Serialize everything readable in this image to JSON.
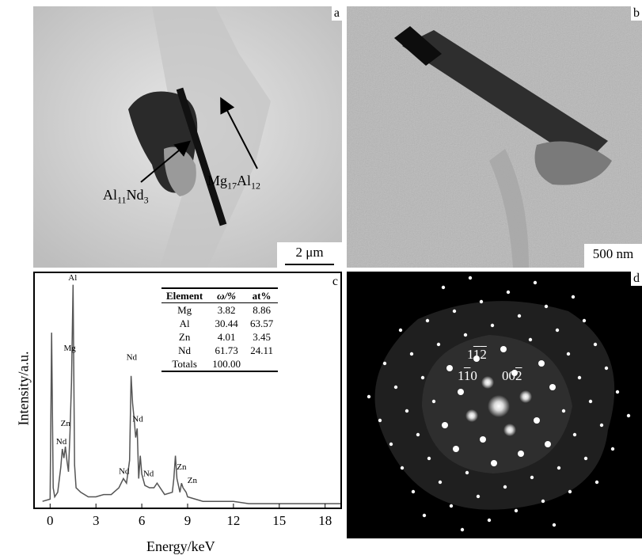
{
  "panels": {
    "a": {
      "label": "a",
      "annotation_1": {
        "base": "Al",
        "sub1": "11",
        "mid": "Nd",
        "sub2": "3"
      },
      "annotation_2": {
        "base": "Mg",
        "sub1": "17",
        "mid": "Al",
        "sub2": "12"
      },
      "scale": "2 μm"
    },
    "b": {
      "label": "b",
      "scale": "500 nm"
    },
    "c": {
      "label": "c"
    },
    "d": {
      "label": "d",
      "index_1": {
        "a": "1",
        "b": "1",
        "c": "2"
      },
      "index_2": {
        "a": "1",
        "b": "1",
        "c": "0"
      },
      "index_3": {
        "a": "0",
        "b": "0",
        "c": "2"
      }
    }
  },
  "eds_table": {
    "headers": [
      "Element",
      "ω/%",
      "at%"
    ],
    "rows": [
      [
        "Mg",
        "3.82",
        "8.86"
      ],
      [
        "Al",
        "30.44",
        "63.57"
      ],
      [
        "Zn",
        "4.01",
        "3.45"
      ],
      [
        "Nd",
        "61.73",
        "24.11"
      ],
      [
        "Totals",
        "100.00",
        ""
      ]
    ]
  },
  "chart_data": {
    "type": "line",
    "xlabel": "Energy/keV",
    "ylabel": "Intensity/a.u.",
    "xlim": [
      -1,
      19
    ],
    "ylim": [
      0,
      100
    ],
    "xticks": [
      0,
      3,
      6,
      9,
      12,
      15,
      18
    ],
    "x": [
      -0.5,
      0,
      0.1,
      0.2,
      0.3,
      0.5,
      0.7,
      0.8,
      0.9,
      1.0,
      1.1,
      1.2,
      1.3,
      1.4,
      1.5,
      1.6,
      1.7,
      2.0,
      2.5,
      3.0,
      3.5,
      4.0,
      4.5,
      4.8,
      5.0,
      5.2,
      5.3,
      5.4,
      5.5,
      5.6,
      5.7,
      5.8,
      5.9,
      6.0,
      6.2,
      6.5,
      6.8,
      7.0,
      7.5,
      8.0,
      8.1,
      8.2,
      8.3,
      8.5,
      8.6,
      8.7,
      8.9,
      9.0,
      9.5,
      10,
      11,
      12,
      13,
      14,
      15,
      16,
      17,
      18,
      19
    ],
    "series": [
      {
        "values": [
          2,
          3,
          76,
          8,
          4,
          6,
          17,
          25,
          21,
          26,
          20,
          15,
          32,
          54,
          97,
          18,
          8,
          6,
          4,
          4,
          5,
          5,
          8,
          12,
          10,
          20,
          57,
          45,
          38,
          30,
          34,
          12,
          22,
          14,
          9,
          8,
          8,
          10,
          5,
          6,
          12,
          22,
          12,
          6,
          10,
          8,
          6,
          4,
          3,
          2,
          2,
          2,
          1,
          1,
          1,
          1,
          1,
          1,
          1
        ]
      }
    ],
    "peak_labels": [
      {
        "text": "Al",
        "x": 1.5,
        "y": 98
      },
      {
        "text": "Mg",
        "x": 1.2,
        "y": 67
      },
      {
        "text": "Zn",
        "x": 1.0,
        "y": 34
      },
      {
        "text": "Nd",
        "x": 0.7,
        "y": 26
      },
      {
        "text": "Nd",
        "x": 5.3,
        "y": 63
      },
      {
        "text": "Nd",
        "x": 5.7,
        "y": 36
      },
      {
        "text": "Nd",
        "x": 4.8,
        "y": 13
      },
      {
        "text": "Nd",
        "x": 6.4,
        "y": 12
      },
      {
        "text": "Zn",
        "x": 8.6,
        "y": 15
      },
      {
        "text": "Zn",
        "x": 9.3,
        "y": 9
      }
    ]
  },
  "colors": {
    "tem_light": "#d9d9d9",
    "tem_dark": "#1a1a1a",
    "saed_bg": "#000000",
    "spot": "#ffffff"
  }
}
